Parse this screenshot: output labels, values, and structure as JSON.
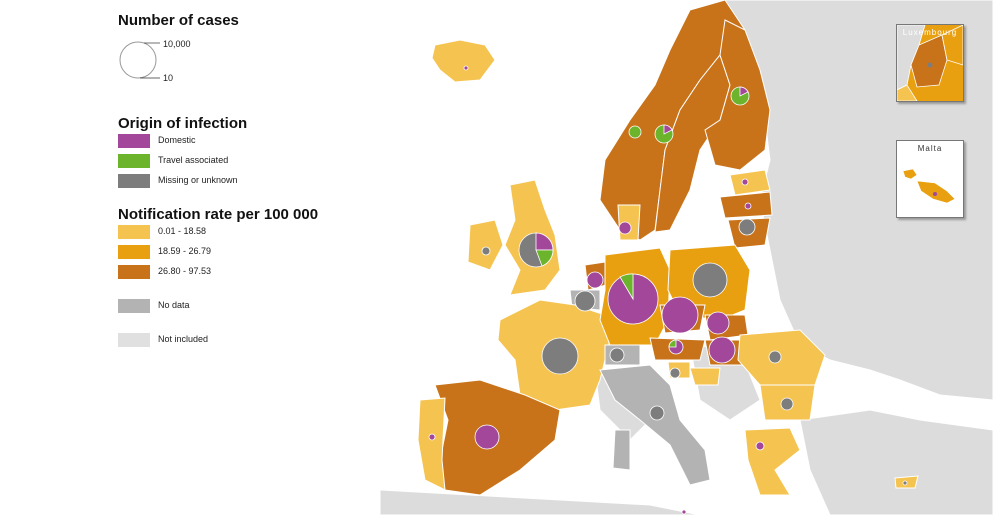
{
  "legend": {
    "cases_title": "Number of cases",
    "size_max": "10,000",
    "size_min": "10",
    "origin_title": "Origin of infection",
    "origin_items": [
      {
        "label": "Domestic",
        "color": "#a2479a"
      },
      {
        "label": "Travel associated",
        "color": "#6bb42b"
      },
      {
        "label": "Missing or unknown",
        "color": "#7d7d7d"
      }
    ],
    "rate_title": "Notification rate per 100 000",
    "rate_items": [
      {
        "label": "0.01 - 18.58",
        "color": "#f5c350"
      },
      {
        "label": "18.59 - 26.79",
        "color": "#e8a010"
      },
      {
        "label": "26.80 - 97.53",
        "color": "#c8731a"
      }
    ],
    "no_data": {
      "label": "No data",
      "color": "#b3b3b3"
    },
    "not_included": {
      "label": "Not included",
      "color": "#e0e0e0"
    }
  },
  "insets": {
    "luxembourg": "Luxembourg",
    "malta": "Malta"
  },
  "colors": {
    "sea": "#ffffff",
    "not_included": "#dcdcdc",
    "no_data": "#b3b3b3",
    "border": "#ffffff"
  }
}
